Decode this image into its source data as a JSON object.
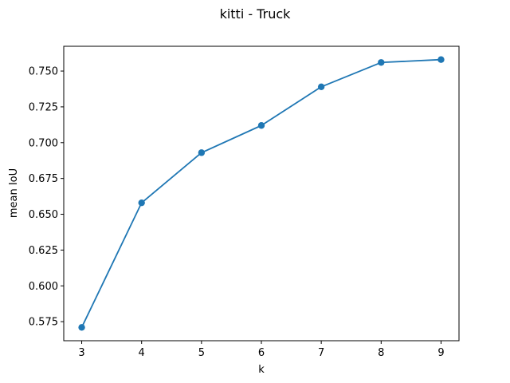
{
  "chart_data": {
    "type": "line",
    "title": "kitti - Truck",
    "xlabel": "k",
    "ylabel": "mean IoU",
    "x": [
      3,
      4,
      5,
      6,
      7,
      8,
      9
    ],
    "series": [
      {
        "values": [
          0.571,
          0.658,
          0.693,
          0.712,
          0.739,
          0.756,
          0.758
        ],
        "color": "#1f77b4",
        "marker": "circle"
      }
    ],
    "xticks": [
      "3",
      "4",
      "5",
      "6",
      "7",
      "8",
      "9"
    ],
    "yticks": [
      "0.575",
      "0.600",
      "0.625",
      "0.650",
      "0.675",
      "0.700",
      "0.725",
      "0.750"
    ],
    "xlim": [
      2.7,
      9.3
    ],
    "ylim": [
      0.5617,
      0.7673
    ],
    "grid": false,
    "legend": "none"
  }
}
